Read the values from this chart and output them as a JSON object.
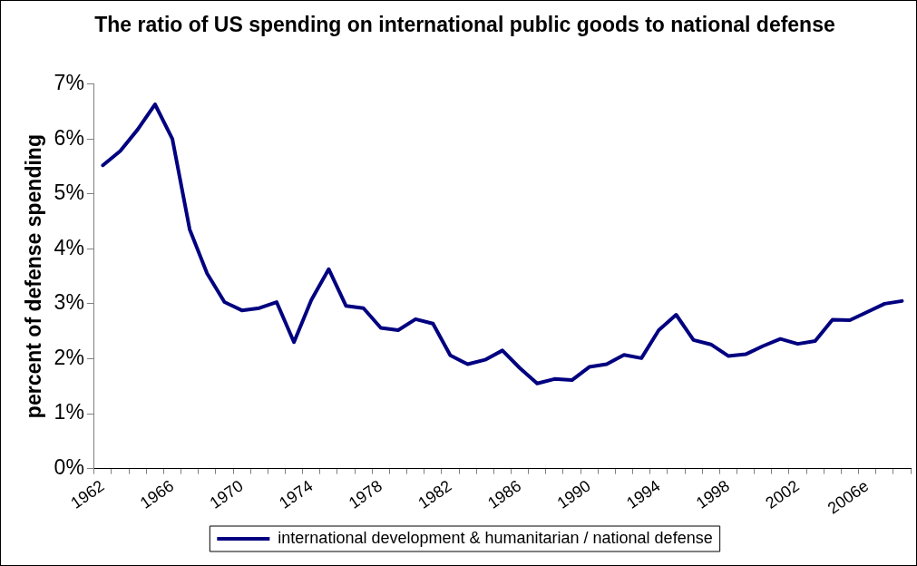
{
  "chart_data": {
    "type": "line",
    "title": "The ratio of US spending on international public goods to national defense",
    "ylabel": "percent of defense spending",
    "categories": [
      "1962",
      null,
      null,
      null,
      "1966",
      null,
      null,
      null,
      "1970",
      null,
      null,
      null,
      "1974",
      null,
      null,
      null,
      "1978",
      null,
      null,
      null,
      "1982",
      null,
      null,
      null,
      "1986",
      null,
      null,
      null,
      "1990",
      null,
      null,
      null,
      "1994",
      null,
      null,
      null,
      "1998",
      null,
      null,
      null,
      "2002",
      null,
      null,
      null,
      "2006e",
      null,
      null
    ],
    "series": [
      {
        "name": "international development & humanitarian / national defense",
        "color": "#000080",
        "values": [
          5.52,
          5.78,
          6.17,
          6.63,
          6.0,
          4.35,
          3.55,
          3.03,
          2.88,
          2.92,
          3.03,
          2.3,
          3.07,
          3.63,
          2.96,
          2.92,
          2.56,
          2.52,
          2.72,
          2.64,
          2.06,
          1.9,
          1.98,
          2.15,
          1.83,
          1.55,
          1.63,
          1.61,
          1.85,
          1.9,
          2.07,
          2.01,
          2.52,
          2.8,
          2.34,
          2.26,
          2.05,
          2.08,
          2.23,
          2.36,
          2.27,
          2.32,
          2.71,
          2.7,
          2.85,
          3.0,
          3.05
        ]
      }
    ],
    "ylim": [
      0,
      7
    ],
    "yticks": [
      {
        "value": 0,
        "label": "0%"
      },
      {
        "value": 1,
        "label": "1%"
      },
      {
        "value": 2,
        "label": "2%"
      },
      {
        "value": 3,
        "label": "3%"
      },
      {
        "value": 4,
        "label": "4%"
      },
      {
        "value": 5,
        "label": "5%"
      },
      {
        "value": 6,
        "label": "6%"
      },
      {
        "value": 7,
        "label": "7%"
      }
    ],
    "grid": false,
    "legend": "bottom",
    "marker": "none",
    "line_style": "solid"
  }
}
